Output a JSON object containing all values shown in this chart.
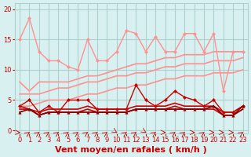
{
  "bg_color": "#d8f0f0",
  "grid_color": "#b0d0d0",
  "xlabel": "Vent moyen/en rafales ( km/h )",
  "xlabel_color": "#cc0000",
  "xlabel_fontsize": 8,
  "yticks": [
    0,
    5,
    10,
    15,
    20
  ],
  "xticks": [
    0,
    1,
    2,
    3,
    4,
    5,
    6,
    7,
    8,
    9,
    10,
    11,
    12,
    13,
    14,
    15,
    16,
    17,
    18,
    19,
    20,
    21,
    22,
    23
  ],
  "ylim": [
    -0.5,
    21
  ],
  "xlim": [
    -0.5,
    23.5
  ],
  "lines": [
    {
      "x": [
        0,
        1,
        2,
        3,
        4,
        5,
        6,
        7,
        8,
        9,
        10,
        11,
        12,
        13,
        14,
        15,
        16,
        17,
        18,
        19,
        20,
        21,
        22,
        23
      ],
      "y": [
        15,
        18.5,
        13,
        11.5,
        11.5,
        10.5,
        10,
        15,
        11.5,
        11.5,
        13,
        16.5,
        16,
        13,
        15.5,
        13,
        13,
        16,
        16,
        13,
        16,
        6.5,
        13,
        13
      ],
      "color": "#ff9090",
      "lw": 1.0,
      "marker": "D",
      "ms": 2.5
    },
    {
      "x": [
        0,
        1,
        2,
        3,
        4,
        5,
        6,
        7,
        8,
        9,
        10,
        11,
        12,
        13,
        14,
        15,
        16,
        17,
        18,
        19,
        20,
        21,
        22,
        23
      ],
      "y": [
        8,
        6.5,
        8,
        8,
        8,
        8,
        8.5,
        9,
        9,
        9.5,
        10,
        10.5,
        11,
        11,
        11.5,
        12,
        12,
        12.5,
        12.5,
        12.5,
        13,
        13,
        13,
        13
      ],
      "color": "#ff9090",
      "lw": 1.2,
      "marker": null,
      "ms": 0
    },
    {
      "x": [
        0,
        1,
        2,
        3,
        4,
        5,
        6,
        7,
        8,
        9,
        10,
        11,
        12,
        13,
        14,
        15,
        16,
        17,
        18,
        19,
        20,
        21,
        22,
        23
      ],
      "y": [
        6,
        6,
        6,
        6.5,
        7,
        7,
        7.5,
        8,
        8,
        8.5,
        9,
        9,
        9.5,
        9.5,
        10,
        10.5,
        10.5,
        11,
        11,
        11,
        11.5,
        11.5,
        11.5,
        12
      ],
      "color": "#ff9090",
      "lw": 1.2,
      "marker": null,
      "ms": 0
    },
    {
      "x": [
        0,
        1,
        2,
        3,
        4,
        5,
        6,
        7,
        8,
        9,
        10,
        11,
        12,
        13,
        14,
        15,
        16,
        17,
        18,
        19,
        20,
        21,
        22,
        23
      ],
      "y": [
        4,
        4,
        4.5,
        5,
        5,
        5,
        5.5,
        6,
        6,
        6.5,
        7,
        7,
        7.5,
        7.5,
        8,
        8.5,
        8.5,
        9,
        9,
        9,
        9.5,
        9.5,
        9.5,
        10
      ],
      "color": "#ff9090",
      "lw": 1.2,
      "marker": null,
      "ms": 0
    },
    {
      "x": [
        0,
        1,
        2,
        3,
        4,
        5,
        6,
        7,
        8,
        9,
        10,
        11,
        12,
        13,
        14,
        15,
        16,
        17,
        18,
        19,
        20,
        21,
        22,
        23
      ],
      "y": [
        4,
        5,
        3,
        4,
        3,
        5,
        5,
        5,
        3.5,
        3.5,
        3.5,
        3.5,
        7.5,
        5,
        4,
        5,
        6.5,
        5.5,
        5,
        4,
        5,
        3,
        3,
        4
      ],
      "color": "#cc0000",
      "lw": 1.0,
      "marker": "D",
      "ms": 2.5
    },
    {
      "x": [
        0,
        1,
        2,
        3,
        4,
        5,
        6,
        7,
        8,
        9,
        10,
        11,
        12,
        13,
        14,
        15,
        16,
        17,
        18,
        19,
        20,
        21,
        22,
        23
      ],
      "y": [
        4,
        3.5,
        3,
        3.5,
        3.5,
        3.5,
        3.5,
        4,
        3.5,
        3.5,
        3.5,
        3.5,
        4,
        4,
        4,
        4,
        4.5,
        4,
        4,
        4,
        4,
        3,
        3,
        4
      ],
      "color": "#cc0000",
      "lw": 1.2,
      "marker": null,
      "ms": 0
    },
    {
      "x": [
        0,
        1,
        2,
        3,
        4,
        5,
        6,
        7,
        8,
        9,
        10,
        11,
        12,
        13,
        14,
        15,
        16,
        17,
        18,
        19,
        20,
        21,
        22,
        23
      ],
      "y": [
        3.5,
        3.5,
        2.5,
        3,
        3,
        3,
        3,
        3.5,
        3,
        3,
        3,
        3,
        3.5,
        3.5,
        3.5,
        3.5,
        4,
        3.5,
        3.5,
        3.5,
        3.5,
        2.5,
        2.5,
        3.5
      ],
      "color": "#cc0000",
      "lw": 1.2,
      "marker": null,
      "ms": 0
    },
    {
      "x": [
        0,
        1,
        2,
        3,
        4,
        5,
        6,
        7,
        8,
        9,
        10,
        11,
        12,
        13,
        14,
        15,
        16,
        17,
        18,
        19,
        20,
        21,
        22,
        23
      ],
      "y": [
        3,
        3.5,
        2.5,
        3,
        3,
        3,
        3,
        3,
        3,
        3,
        3,
        3,
        3.5,
        3.5,
        3.5,
        3.5,
        3.5,
        3.5,
        3.5,
        3.5,
        4,
        2.5,
        2.5,
        4
      ],
      "color": "#880000",
      "lw": 1.0,
      "marker": "^",
      "ms": 3
    },
    {
      "x": [
        0,
        1,
        2,
        3,
        4,
        5,
        6,
        7,
        8,
        9,
        10,
        11,
        12,
        13,
        14,
        15,
        16,
        17,
        18,
        19,
        20,
        21,
        22,
        23
      ],
      "y": [
        3,
        3.5,
        2.5,
        3,
        3,
        3,
        3,
        3,
        3,
        3,
        3,
        3,
        3.5,
        3.5,
        3.5,
        3.5,
        3.5,
        3.5,
        3.5,
        3.5,
        4,
        2.5,
        2.5,
        3.5
      ],
      "color": "#880000",
      "lw": 1.0,
      "marker": null,
      "ms": 0
    }
  ],
  "tick_color": "#cc0000",
  "tick_fontsize": 6,
  "arrow_angles": [
    90,
    45,
    45,
    45,
    45,
    45,
    45,
    45,
    45,
    45,
    135,
    45,
    45,
    135,
    45,
    90,
    45,
    45,
    90,
    45,
    90,
    90,
    90,
    45
  ]
}
